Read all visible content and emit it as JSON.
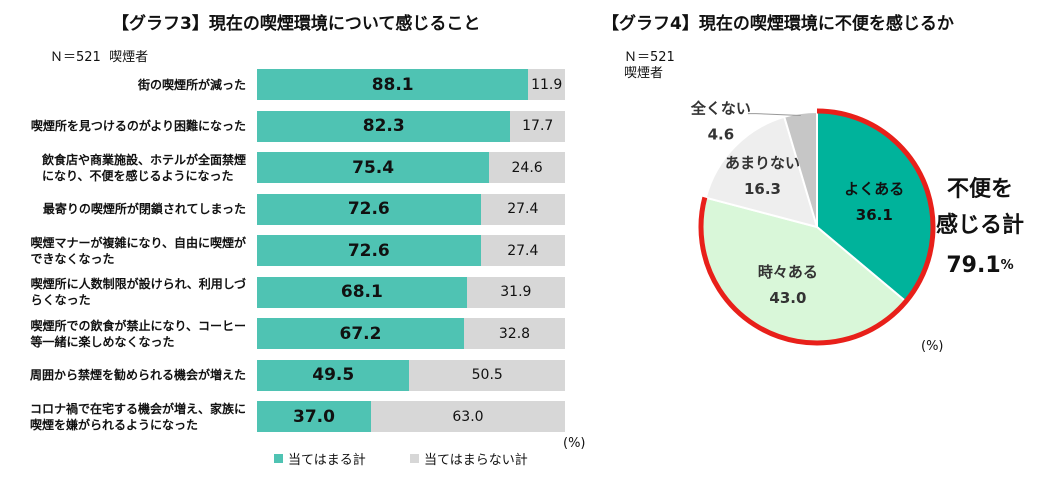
{
  "chart_data": [
    {
      "type": "bar",
      "title": "【グラフ3】現在の喫煙環境について感じること",
      "note_n": "Ｎ＝521",
      "note_group": "喫煙者",
      "unit": "(%)",
      "categories": [
        "街の喫煙所が減った",
        "喫煙所を見つけるのがより困難になった",
        "飲食店や商業施設、ホテルが全面禁煙になり、不便を感じるようになった",
        "最寄りの喫煙所が閉鎖されてしまった",
        "喫煙マナーが複雑になり、自由に喫煙ができなくなった",
        "喫煙所に人数制限が設けられ、利用しづらくなった",
        "喫煙所での飲食が禁止になり、コーヒー等一緒に楽しめなくなった",
        "周囲から禁煙を勧められる機会が増えた",
        "コロナ禍で在宅する機会が増え、家族に喫煙を嫌がられるようになった"
      ],
      "category_lines": [
        [
          "街の喫煙所が減った"
        ],
        [
          "喫煙所を見つけるのがより困難になった"
        ],
        [
          "飲食店や商業施設、ホテルが全面禁煙",
          "になり、不便を感じるようになった"
        ],
        [
          "最寄りの喫煙所が閉鎖されてしまった"
        ],
        [
          "喫煙マナーが複雑になり、自由に喫煙が",
          "できなくなった"
        ],
        [
          "喫煙所に人数制限が設けられ、利用しづ",
          "らくなった"
        ],
        [
          "喫煙所での飲食が禁止になり、コーヒー",
          "等一緒に楽しめなくなった"
        ],
        [
          "周囲から禁煙を勧められる機会が増えた"
        ],
        [
          "コロナ禍で在宅する機会が増え、家族に",
          "喫煙を嫌がられるようになった"
        ]
      ],
      "series": [
        {
          "name": "当てはまる計",
          "color": "#4fc3b3",
          "values": [
            88.1,
            82.3,
            75.4,
            72.6,
            72.6,
            68.1,
            67.2,
            49.5,
            37.0
          ]
        },
        {
          "name": "当てはまらない計",
          "color": "#d7d7d7",
          "values": [
            11.9,
            17.7,
            24.6,
            27.4,
            27.4,
            31.9,
            32.8,
            50.5,
            63.0
          ]
        }
      ],
      "xlim": [
        0,
        100
      ],
      "stacked": true,
      "legend_position": "bottom"
    },
    {
      "type": "pie",
      "title": "【グラフ4】現在の喫煙環境に不便を感じるか",
      "note_n": "Ｎ＝521",
      "note_group": "喫煙者",
      "unit": "(%)",
      "slices": [
        {
          "label": "よくある",
          "value": 36.1,
          "color": "#00b39b",
          "label_color": "#111111"
        },
        {
          "label": "時々ある",
          "value": 43.0,
          "color": "#d9f7d9",
          "label_color": "#333333"
        },
        {
          "label": "あまりない",
          "value": 16.3,
          "color": "#eeeeee",
          "label_color": "#333333"
        },
        {
          "label": "全くない",
          "value": 4.6,
          "color": "#c6c6c6",
          "label_color": "#333333"
        }
      ],
      "highlight_color": "#e8201a",
      "summary_line1": "不便を",
      "summary_line2": "感じる計",
      "summary_value": "79.1",
      "summary_unit": "%"
    }
  ]
}
